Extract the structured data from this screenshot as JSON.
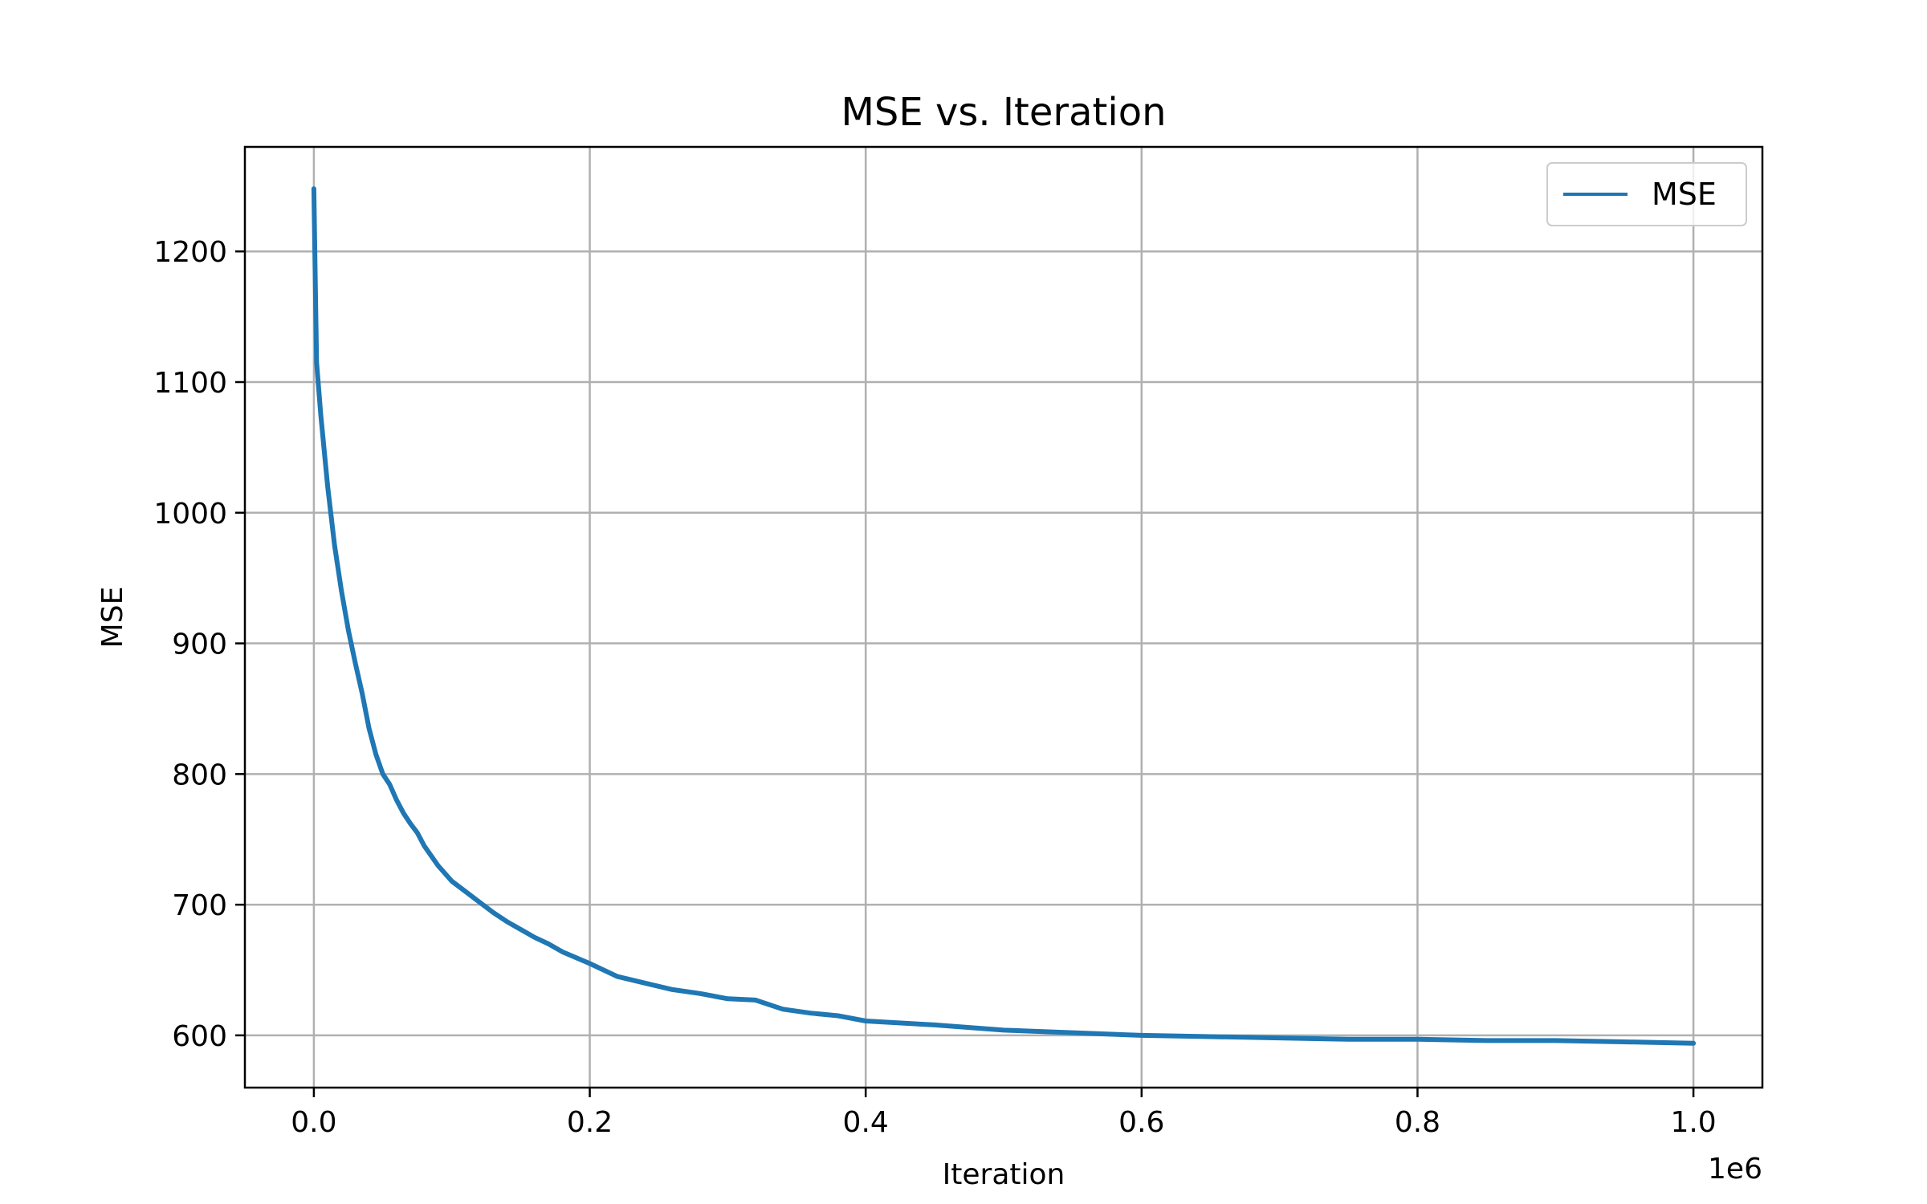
{
  "chart_data": {
    "type": "line",
    "title": "MSE vs. Iteration",
    "xlabel": "Iteration",
    "ylabel": "MSE",
    "x_offset_text": "1e6",
    "xlim": [
      -50000,
      1050000
    ],
    "ylim": [
      560,
      1280
    ],
    "xticks": [
      0,
      200000,
      400000,
      600000,
      800000,
      1000000
    ],
    "xtick_labels": [
      "0.0",
      "0.2",
      "0.4",
      "0.6",
      "0.8",
      "1.0"
    ],
    "yticks": [
      600,
      700,
      800,
      900,
      1000,
      1100,
      1200
    ],
    "ytick_labels": [
      "600",
      "700",
      "800",
      "900",
      "1000",
      "1100",
      "1200"
    ],
    "grid": true,
    "legend_position": "top-right",
    "series": [
      {
        "name": "MSE",
        "color": "#1f77b4",
        "x": [
          0,
          1000,
          2000,
          5000,
          10000,
          15000,
          20000,
          25000,
          30000,
          35000,
          40000,
          45000,
          50000,
          55000,
          60000,
          65000,
          70000,
          75000,
          80000,
          90000,
          100000,
          110000,
          120000,
          130000,
          140000,
          150000,
          160000,
          170000,
          180000,
          200000,
          220000,
          240000,
          260000,
          280000,
          300000,
          320000,
          340000,
          360000,
          380000,
          400000,
          450000,
          500000,
          550000,
          600000,
          650000,
          700000,
          750000,
          800000,
          850000,
          900000,
          950000,
          1000000
        ],
        "y": [
          1248,
          1180,
          1115,
          1075,
          1020,
          975,
          940,
          910,
          885,
          862,
          835,
          815,
          800,
          792,
          780,
          770,
          762,
          755,
          745,
          730,
          718,
          710,
          702,
          694,
          687,
          681,
          675,
          670,
          664,
          655,
          645,
          640,
          635,
          632,
          628,
          627,
          620,
          617,
          615,
          611,
          608,
          604,
          602,
          600,
          599,
          598,
          597,
          597,
          596,
          596,
          595,
          594
        ]
      }
    ]
  }
}
